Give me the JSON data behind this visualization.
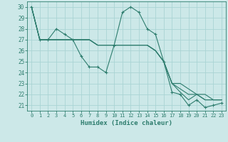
{
  "xlabel": "Humidex (Indice chaleur)",
  "x_values": [
    0,
    1,
    2,
    3,
    4,
    5,
    6,
    7,
    8,
    9,
    10,
    11,
    12,
    13,
    14,
    15,
    16,
    17,
    18,
    19,
    20,
    21,
    22,
    23
  ],
  "series": [
    [
      30,
      27,
      27,
      28,
      27.5,
      27,
      25.5,
      24.5,
      24.5,
      24,
      26.5,
      29.5,
      30,
      29.5,
      28,
      27.5,
      25,
      22.2,
      22,
      21,
      21.5,
      20.8,
      21,
      21.2
    ],
    [
      30,
      27,
      27,
      27,
      27,
      27,
      27,
      27,
      26.5,
      26.5,
      26.5,
      26.5,
      26.5,
      26.5,
      26.5,
      26,
      25,
      23,
      22.2,
      21.5,
      22,
      21.5,
      21.5,
      21.5
    ],
    [
      30,
      27,
      27,
      27,
      27,
      27,
      27,
      27,
      26.5,
      26.5,
      26.5,
      26.5,
      26.5,
      26.5,
      26.5,
      26,
      25,
      23,
      22.5,
      22,
      22,
      21.5,
      21.5,
      21.5
    ],
    [
      30,
      27,
      27,
      27,
      27,
      27,
      27,
      27,
      26.5,
      26.5,
      26.5,
      26.5,
      26.5,
      26.5,
      26.5,
      26,
      25,
      23,
      23,
      22.5,
      22,
      22,
      21.5,
      21.5
    ]
  ],
  "line_color": "#2e7d6e",
  "bg_color": "#cce8e8",
  "grid_color": "#aad4d4",
  "ylim": [
    20.5,
    30.5
  ],
  "yticks": [
    21,
    22,
    23,
    24,
    25,
    26,
    27,
    28,
    29,
    30
  ]
}
